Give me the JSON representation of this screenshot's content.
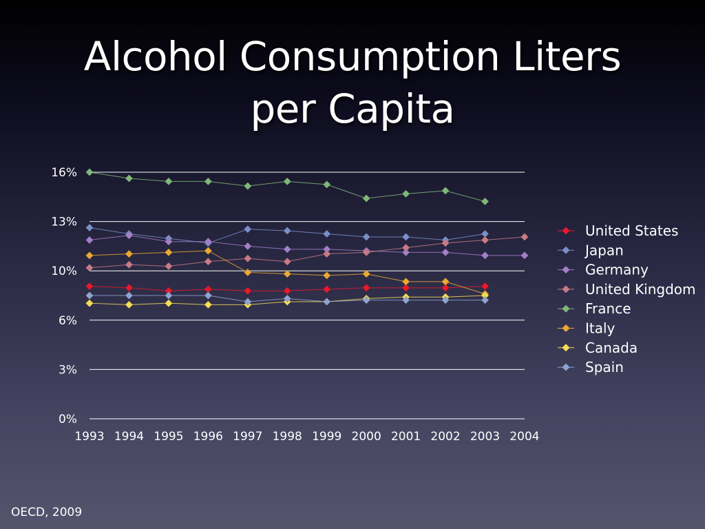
{
  "slide": {
    "title_line1": "Alcohol Consumption Liters",
    "title_line2": "per Capita",
    "source": "OECD, 2009"
  },
  "chart_data": {
    "type": "line",
    "title": "Alcohol Consumption Liters per Capita",
    "xlabel": "",
    "ylabel": "",
    "x": [
      "1993",
      "1994",
      "1995",
      "1996",
      "1997",
      "1998",
      "1999",
      "2000",
      "2001",
      "2002",
      "2003",
      "2004"
    ],
    "y_ticks": [
      "0%",
      "3%",
      "6%",
      "10%",
      "13%",
      "16%"
    ],
    "ylim": [
      0,
      16
    ],
    "grid": true,
    "legend_position": "right",
    "series": [
      {
        "name": "United States",
        "color": "#e8192c",
        "values": [
          8.6,
          8.5,
          8.3,
          8.4,
          8.3,
          8.3,
          8.4,
          8.5,
          8.5,
          8.5,
          8.6,
          null
        ]
      },
      {
        "name": "Japan",
        "color": "#7a8fc8",
        "values": [
          12.4,
          12.0,
          11.7,
          11.4,
          12.3,
          12.2,
          12.0,
          11.8,
          11.8,
          11.6,
          12.0,
          null
        ]
      },
      {
        "name": "Germany",
        "color": "#a27fc8",
        "values": [
          11.6,
          11.9,
          11.5,
          11.5,
          11.2,
          11.0,
          11.0,
          10.9,
          10.8,
          10.8,
          10.6,
          10.6
        ]
      },
      {
        "name": "United Kingdom",
        "color": "#c77b86",
        "values": [
          9.8,
          10.0,
          9.9,
          10.2,
          10.4,
          10.2,
          10.7,
          10.8,
          11.1,
          11.4,
          11.6,
          11.8
        ]
      },
      {
        "name": "France",
        "color": "#7fb77a",
        "values": [
          16.0,
          15.6,
          15.4,
          15.4,
          15.1,
          15.4,
          15.2,
          14.3,
          14.6,
          14.8,
          14.1,
          null
        ]
      },
      {
        "name": "Italy",
        "color": "#e8a936",
        "values": [
          10.6,
          10.7,
          10.8,
          10.9,
          9.5,
          9.4,
          9.3,
          9.4,
          8.9,
          8.9,
          8.1,
          null
        ]
      },
      {
        "name": "Canada",
        "color": "#f5dd55",
        "values": [
          7.5,
          7.4,
          7.5,
          7.4,
          7.4,
          7.6,
          7.6,
          7.8,
          7.9,
          7.9,
          8.0,
          null
        ]
      },
      {
        "name": "Spain",
        "color": "#8fa3cf",
        "values": [
          8.0,
          8.0,
          8.0,
          8.0,
          7.6,
          7.8,
          7.6,
          7.7,
          7.7,
          7.7,
          7.7,
          null
        ]
      }
    ]
  }
}
